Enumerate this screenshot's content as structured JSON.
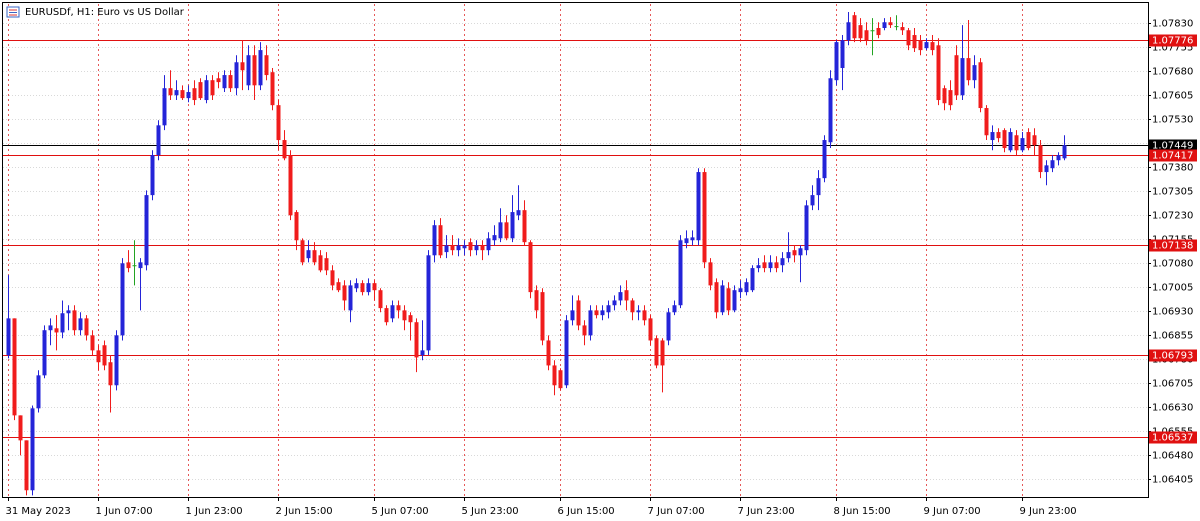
{
  "chart_data": {
    "type": "candlestick",
    "title": "EURUSDf, H1:  Euro vs US Dollar",
    "up_color": "#2424d8",
    "down_color": "#f01c1c",
    "doji_color": "#22a322",
    "grid": true,
    "ylim": [
      1.0635,
      1.0789
    ],
    "yticks": [
      {
        "value": 1.0783,
        "label": "1.07830"
      },
      1.07755,
      {
        "value": 1.0768,
        "label": "1.07680"
      },
      1.07605,
      {
        "value": 1.0753,
        "label": "1.07530"
      },
      1.07455,
      {
        "value": 1.0738,
        "label": "1.07380"
      },
      1.07305,
      {
        "value": 1.0723,
        "label": "1.07230"
      },
      1.07155,
      {
        "value": 1.0708,
        "label": "1.07080"
      },
      1.07005,
      {
        "value": 1.0693,
        "label": "1.06930"
      },
      1.06855,
      {
        "value": 1.0678,
        "label": "1.06780"
      },
      1.06705,
      {
        "value": 1.0663,
        "label": "1.06630"
      },
      1.06555,
      {
        "value": 1.0648,
        "label": "1.06480"
      },
      1.06405
    ],
    "xticks": [
      {
        "value": 0,
        "label": "31 May 2023"
      },
      {
        "value": 15,
        "label": "1 Jun 07:00"
      },
      {
        "value": 30,
        "label": "1 Jun 23:00"
      },
      {
        "value": 45,
        "label": "2 Jun 15:00"
      },
      {
        "value": 61,
        "label": "5 Jun 07:00"
      },
      {
        "value": 76,
        "label": "5 Jun 23:00"
      },
      {
        "value": 92,
        "label": "6 Jun 15:00"
      },
      {
        "value": 107,
        "label": "7 Jun 07:00"
      },
      {
        "value": 122,
        "label": "7 Jun 23:00"
      },
      {
        "value": 138,
        "label": "8 Jun 15:00"
      },
      {
        "value": 153,
        "label": "9 Jun 07:00"
      },
      {
        "value": 169,
        "label": "9 Jun 23:00"
      }
    ],
    "levels": [
      {
        "value": 1.07776,
        "color": "#e01010"
      },
      {
        "value": 1.07449,
        "color": "#000000"
      },
      {
        "value": 1.07417,
        "color": "#e01010"
      },
      {
        "value": 1.07138,
        "color": "#e01010"
      },
      {
        "value": 1.06793,
        "color": "#e01010"
      },
      {
        "value": 1.06537,
        "color": "#e01010"
      }
    ],
    "open": [
      1.06793,
      1.06908,
      1.06605,
      1.06527,
      1.06371,
      1.06627,
      1.0673,
      1.06871,
      1.06877,
      1.06864,
      1.06924,
      1.06933,
      1.06871,
      1.06908,
      1.06855,
      1.06808,
      1.06824,
      1.06771,
      1.06699,
      1.06855,
      1.07083,
      1.07074,
      1.07065,
      1.07074,
      1.07293,
      1.07418,
      1.07511,
      1.07627,
      1.07605,
      1.07621,
      1.07596,
      1.07627,
      1.07646,
      1.0759,
      1.07652,
      1.07658,
      1.07627,
      1.07668,
      1.07627,
      1.07708,
      1.07636,
      1.0773,
      1.07636,
      1.0773,
      1.07677,
      1.07574,
      1.07465,
      1.07418,
      1.0724,
      1.07152,
      1.07096,
      1.07121,
      1.07105,
      1.07096,
      1.07058,
      1.07021,
      1.07011,
      1.06933,
      1.07002,
      1.07018,
      1.0699,
      1.07018,
      1.06996,
      1.0694,
      1.06908,
      1.06949,
      1.06933,
      1.06918,
      1.06896,
      1.06793,
      1.06808,
      1.07105,
      1.07199,
      1.07115,
      1.07136,
      1.07121,
      1.07127,
      1.07146,
      1.07121,
      1.07136,
      1.07121,
      1.07152,
      1.07158,
      1.07208,
      1.07158,
      1.0723,
      1.07246,
      1.07146,
      1.06996,
      1.0699,
      1.06839,
      1.06761,
      1.06746,
      1.06699,
      1.06902,
      1.06964,
      1.06886,
      1.06855,
      1.06933,
      1.06918,
      1.06927,
      1.06949,
      1.06964,
      1.06996,
      1.06964,
      1.06927,
      1.06933,
      1.06908,
      1.06846,
      1.06839,
      1.06839,
      1.06927,
      1.06949,
      1.07143,
      1.07152,
      1.07152,
      1.07365,
      1.07083,
      1.07021,
      1.06927,
      1.07002,
      1.06933,
      1.0699,
      1.0699,
      1.06996,
      1.07065,
      1.07083,
      1.07065,
      1.07083,
      1.07074,
      1.07096,
      1.07121,
      1.07105,
      1.07121,
      1.07261,
      1.07293,
      1.07346,
      1.07458,
      1.07652,
      1.0769,
      1.07777,
      1.07855,
      1.07824,
      1.07808,
      1.07808,
      1.07815,
      1.07815,
      1.07833,
      1.07821,
      1.07818,
      1.07808,
      1.07793,
      1.07777,
      1.07752,
      1.07771,
      1.07761,
      1.07627,
      1.07621,
      1.0773,
      1.07605,
      1.07721,
      1.07652,
      1.07708,
      1.07565,
      1.07465,
      1.0749,
      1.07496,
      1.07433,
      1.0748,
      1.07433,
      1.0749,
      1.0748,
      1.07449,
      1.07365,
      1.07377,
      1.07402,
      1.07408
    ],
    "high": [
      1.07043,
      1.06908,
      1.06605,
      1.06527,
      1.06636,
      1.06746,
      1.06886,
      1.06908,
      1.06918,
      1.06964,
      1.06949,
      1.06949,
      1.06927,
      1.06918,
      1.06871,
      1.06824,
      1.06839,
      1.06793,
      1.06871,
      1.07096,
      1.07121,
      1.07152,
      1.07096,
      1.07308,
      1.07433,
      1.07527,
      1.07668,
      1.07683,
      1.07652,
      1.07636,
      1.07636,
      1.07652,
      1.07658,
      1.07668,
      1.07668,
      1.07677,
      1.07683,
      1.07683,
      1.0773,
      1.07777,
      1.07761,
      1.07761,
      1.07771,
      1.07761,
      1.0769,
      1.0759,
      1.07496,
      1.07433,
      1.07246,
      1.07158,
      1.07152,
      1.07146,
      1.07121,
      1.07115,
      1.07074,
      1.07033,
      1.07027,
      1.07027,
      1.07033,
      1.07027,
      1.07033,
      1.07027,
      1.07002,
      1.06949,
      1.06964,
      1.06964,
      1.06949,
      1.06927,
      1.06908,
      1.06902,
      1.07121,
      1.07215,
      1.07221,
      1.07168,
      1.07168,
      1.07158,
      1.07152,
      1.07158,
      1.07152,
      1.07152,
      1.07177,
      1.07199,
      1.07252,
      1.0723,
      1.07293,
      1.07324,
      1.07277,
      1.07152,
      1.07011,
      1.07002,
      1.06855,
      1.06777,
      1.06752,
      1.06918,
      1.0698,
      1.0698,
      1.06902,
      1.06949,
      1.06949,
      1.06949,
      1.06964,
      1.0698,
      1.07011,
      1.07027,
      1.06971,
      1.06949,
      1.06949,
      1.06918,
      1.06855,
      1.06846,
      1.0694,
      1.06964,
      1.07168,
      1.07183,
      1.07183,
      1.07377,
      1.07377,
      1.07096,
      1.07033,
      1.07027,
      1.07021,
      1.07011,
      1.07027,
      1.07033,
      1.07074,
      1.07096,
      1.07105,
      1.07105,
      1.07102,
      1.07115,
      1.07177,
      1.07136,
      1.07136,
      1.07277,
      1.07324,
      1.07371,
      1.0748,
      1.07683,
      1.07777,
      1.07793,
      1.07865,
      1.07865,
      1.07846,
      1.07833,
      1.07846,
      1.07833,
      1.07846,
      1.07849,
      1.07855,
      1.07833,
      1.07815,
      1.07815,
      1.07793,
      1.07783,
      1.07793,
      1.07783,
      1.07636,
      1.07652,
      1.07761,
      1.07824,
      1.0784,
      1.0773,
      1.07721,
      1.07574,
      1.07511,
      1.07502,
      1.07502,
      1.07502,
      1.07496,
      1.0749,
      1.07502,
      1.07502,
      1.07465,
      1.07402,
      1.07418,
      1.07427,
      1.0748
    ],
    "low": [
      1.06783,
      1.0659,
      1.0648,
      1.06355,
      1.06355,
      1.06614,
      1.06721,
      1.06824,
      1.06808,
      1.06846,
      1.06871,
      1.06855,
      1.06855,
      1.06839,
      1.06793,
      1.06746,
      1.06746,
      1.06614,
      1.06683,
      1.06839,
      1.07052,
      1.07011,
      1.06933,
      1.07058,
      1.07277,
      1.07402,
      1.07496,
      1.0759,
      1.0759,
      1.0759,
      1.07583,
      1.07574,
      1.0759,
      1.0758,
      1.0759,
      1.07627,
      1.07615,
      1.07615,
      1.07605,
      1.07621,
      1.07621,
      1.0759,
      1.07621,
      1.07652,
      1.07558,
      1.07433,
      1.07402,
      1.07215,
      1.07121,
      1.07074,
      1.07083,
      1.07074,
      1.07052,
      1.07043,
      1.06996,
      1.0699,
      1.06933,
      1.06896,
      1.0699,
      1.0698,
      1.0698,
      1.06964,
      1.06927,
      1.06886,
      1.06896,
      1.06908,
      1.06871,
      1.06839,
      1.0674,
      1.06777,
      1.06793,
      1.07083,
      1.07096,
      1.07096,
      1.07105,
      1.07102,
      1.07105,
      1.07102,
      1.07105,
      1.0709,
      1.07105,
      1.07136,
      1.07146,
      1.07152,
      1.07146,
      1.07215,
      1.07136,
      1.06971,
      1.06908,
      1.06824,
      1.06746,
      1.06668,
      1.06683,
      1.0669,
      1.06886,
      1.06871,
      1.06824,
      1.06839,
      1.06908,
      1.06902,
      1.06908,
      1.06933,
      1.06949,
      1.06933,
      1.06902,
      1.06902,
      1.06886,
      1.06824,
      1.06752,
      1.06677,
      1.06824,
      1.06918,
      1.0694,
      1.07127,
      1.07136,
      1.07136,
      1.07065,
      1.06996,
      1.06908,
      1.06918,
      1.06918,
      1.06927,
      1.06971,
      1.0698,
      1.0699,
      1.07052,
      1.07052,
      1.07052,
      1.07052,
      1.07052,
      1.07083,
      1.07083,
      1.07021,
      1.07105,
      1.07246,
      1.07246,
      1.07333,
      1.0744,
      1.07636,
      1.07621,
      1.07761,
      1.07771,
      1.07771,
      1.07761,
      1.0773,
      1.07783,
      1.07808,
      1.07815,
      1.07808,
      1.07793,
      1.07746,
      1.0774,
      1.0773,
      1.07746,
      1.0773,
      1.07574,
      1.07558,
      1.07558,
      1.0759,
      1.0759,
      1.07636,
      1.07627,
      1.07552,
      1.07465,
      1.07433,
      1.07458,
      1.07427,
      1.07427,
      1.07418,
      1.07427,
      1.07433,
      1.07418,
      1.07346,
      1.07324,
      1.07365,
      1.07386,
      1.07402
    ],
    "close": [
      1.06908,
      1.06605,
      1.06527,
      1.06371,
      1.06627,
      1.0673,
      1.06871,
      1.06886,
      1.06864,
      1.06924,
      1.06933,
      1.06871,
      1.06908,
      1.06855,
      1.06808,
      1.06771,
      1.06761,
      1.06699,
      1.06855,
      1.0708,
      1.07065,
      1.07074,
      1.07083,
      1.07293,
      1.07418,
      1.07511,
      1.07627,
      1.07605,
      1.07621,
      1.07596,
      1.07615,
      1.0759,
      1.07596,
      1.07652,
      1.07605,
      1.07646,
      1.07668,
      1.07627,
      1.07708,
      1.07683,
      1.0773,
      1.07636,
      1.07746,
      1.07668,
      1.07574,
      1.07465,
      1.07408,
      1.0723,
      1.07152,
      1.07083,
      1.07121,
      1.07083,
      1.07058,
      1.07058,
      1.07011,
      1.06996,
      1.06964,
      1.07011,
      1.07018,
      1.0699,
      1.07018,
      1.06996,
      1.0694,
      1.06896,
      1.06949,
      1.06933,
      1.06902,
      1.06896,
      1.06786,
      1.06808,
      1.07105,
      1.07199,
      1.07105,
      1.07136,
      1.07121,
      1.07136,
      1.07136,
      1.07121,
      1.07136,
      1.07121,
      1.07158,
      1.07168,
      1.07208,
      1.07158,
      1.0724,
      1.07246,
      1.07146,
      1.0699,
      1.06933,
      1.06839,
      1.06761,
      1.06699,
      1.0669,
      1.06902,
      1.06933,
      1.06886,
      1.06855,
      1.06933,
      1.06918,
      1.06933,
      1.06949,
      1.06964,
      1.0699,
      1.06964,
      1.06927,
      1.06933,
      1.06902,
      1.06839,
      1.06761,
      1.06761,
      1.06927,
      1.06949,
      1.07152,
      1.07158,
      1.07161,
      1.07365,
      1.07083,
      1.07011,
      1.06927,
      1.07011,
      1.06933,
      1.06996,
      1.07002,
      1.07021,
      1.07065,
      1.07074,
      1.07065,
      1.07083,
      1.07065,
      1.07096,
      1.07115,
      1.07105,
      1.07127,
      1.07261,
      1.07293,
      1.07346,
      1.07465,
      1.07658,
      1.07771,
      1.07777,
      1.07833,
      1.07783,
      1.07783,
      1.07777,
      1.07808,
      1.07793,
      1.07833,
      1.07824,
      1.07821,
      1.07808,
      1.07761,
      1.07752,
      1.07746,
      1.07771,
      1.07746,
      1.0759,
      1.0758,
      1.07574,
      1.07605,
      1.07721,
      1.07652,
      1.07699,
      1.07565,
      1.0748,
      1.0749,
      1.07471,
      1.0744,
      1.0749,
      1.07433,
      1.07471,
      1.0744,
      1.07449,
      1.07365,
      1.07386,
      1.07402,
      1.07418,
      1.07449
    ]
  }
}
